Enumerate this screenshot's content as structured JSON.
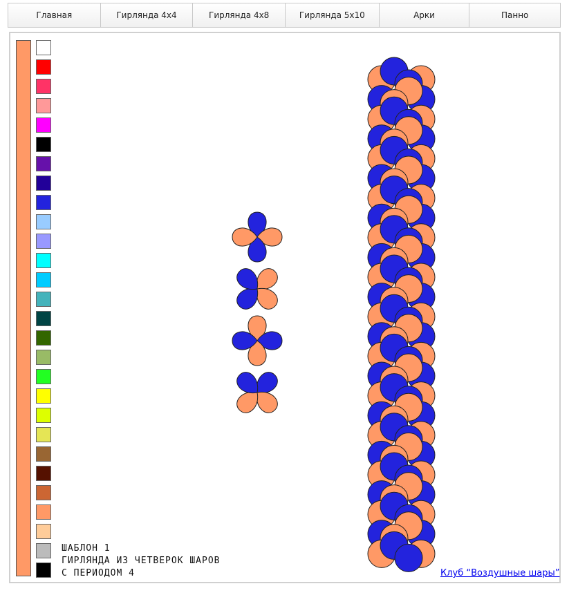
{
  "nav": {
    "items": [
      "Главная",
      "Гирлянда 4x4",
      "Гирлянда 4x8",
      "Гирлянда 5x10",
      "Арки",
      "Панно"
    ]
  },
  "colors": {
    "current": "#FF9966",
    "a": "#FF9966",
    "b": "#2323DD"
  },
  "palette": [
    "#FFFFFF",
    "#FF0000",
    "#FF3366",
    "#FF9999",
    "#FF00FF",
    "#000000",
    "#6611AA",
    "#220099",
    "#2323DD",
    "#99CCFF",
    "#9999FF",
    "#00FFFF",
    "#00CCFF",
    "#44B3BB",
    "#004444",
    "#336600",
    "#99BB66",
    "#22FF22",
    "#FFFF00",
    "#DDFF00",
    "#E5E555",
    "#996633",
    "#551100",
    "#CC6633",
    "#FF9966",
    "#FFCC99",
    "#BBBBBB",
    "#000000"
  ],
  "template": {
    "line1": "ШАБЛОН 1",
    "line2": "ГИРЛЯНДА ИЗ ЧЕТВЕРОК ШАРОВ",
    "line3": "С ПЕРИОДОМ 4"
  },
  "link": {
    "text": "Клуб “Воздушные шары”"
  }
}
